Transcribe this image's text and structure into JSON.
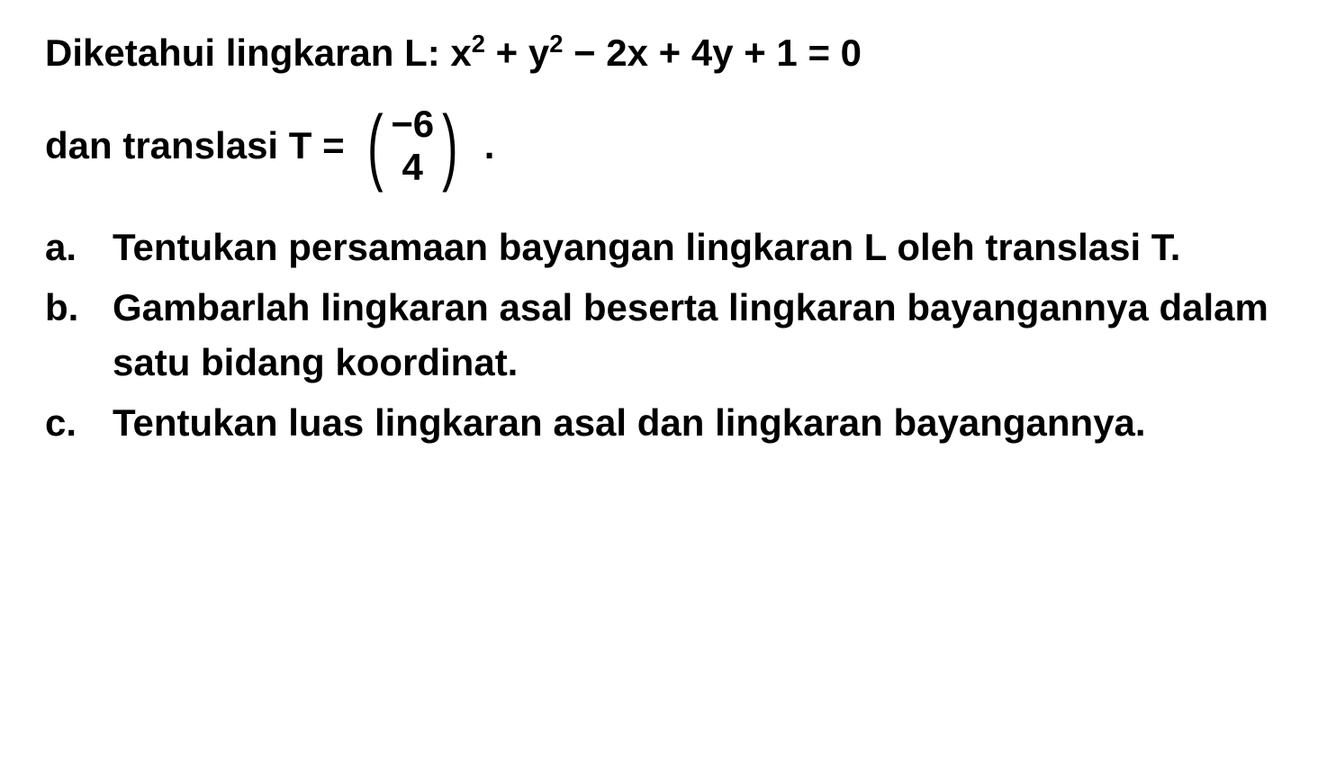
{
  "problem": {
    "intro_prefix": "Diketahui lingkaran L: ",
    "equation_html": "x<sup>2</sup> + y<sup>2</sup> − 2x + 4y + 1 = 0",
    "translation_prefix": "dan translasi  T = ",
    "matrix_top": "−6",
    "matrix_bottom": "4",
    "period": ".",
    "questions": [
      {
        "label": "a.",
        "text": "Tentukan persamaan bayangan lingkaran L oleh translasi T."
      },
      {
        "label": "b.",
        "text": "Gambarlah lingkaran asal beserta lingkaran bayangannya dalam satu bidang koordinat."
      },
      {
        "label": "c.",
        "text": "Tentukan luas lingkaran asal dan lingkaran bayangannya."
      }
    ]
  },
  "style": {
    "background_color": "#ffffff",
    "text_color": "#000000",
    "font_size_pt": 42,
    "font_weight": "bold",
    "font_family": "Arial"
  }
}
